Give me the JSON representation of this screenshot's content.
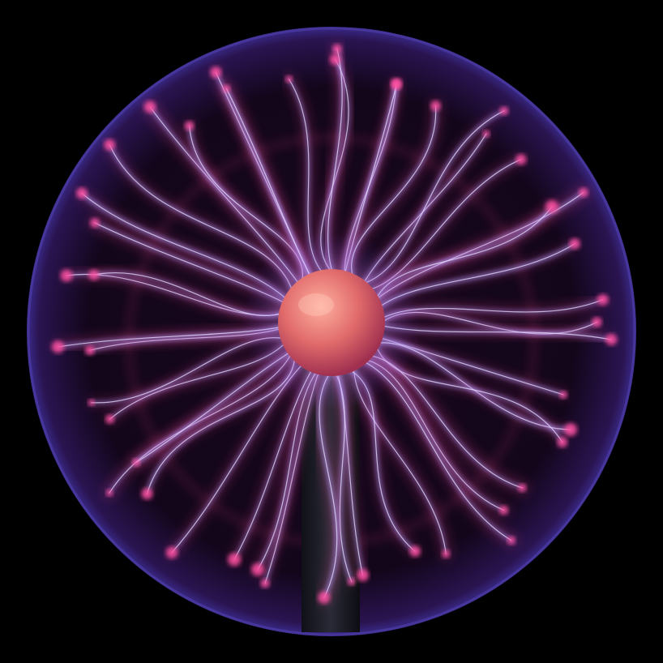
{
  "colors": {
    "background": "#000000",
    "glass_rim": "#3a2a8a",
    "glass_fill": "#12061a",
    "filament_core": "#e8e0ff",
    "filament_mid": "#b49cff",
    "filament_tip": "#ff4fa0",
    "electrode": "#e06a6a",
    "electrode_highlight": "#ff9a8a",
    "stem": "#1a1a22"
  },
  "scene": {
    "subject": "plasma-ball"
  }
}
